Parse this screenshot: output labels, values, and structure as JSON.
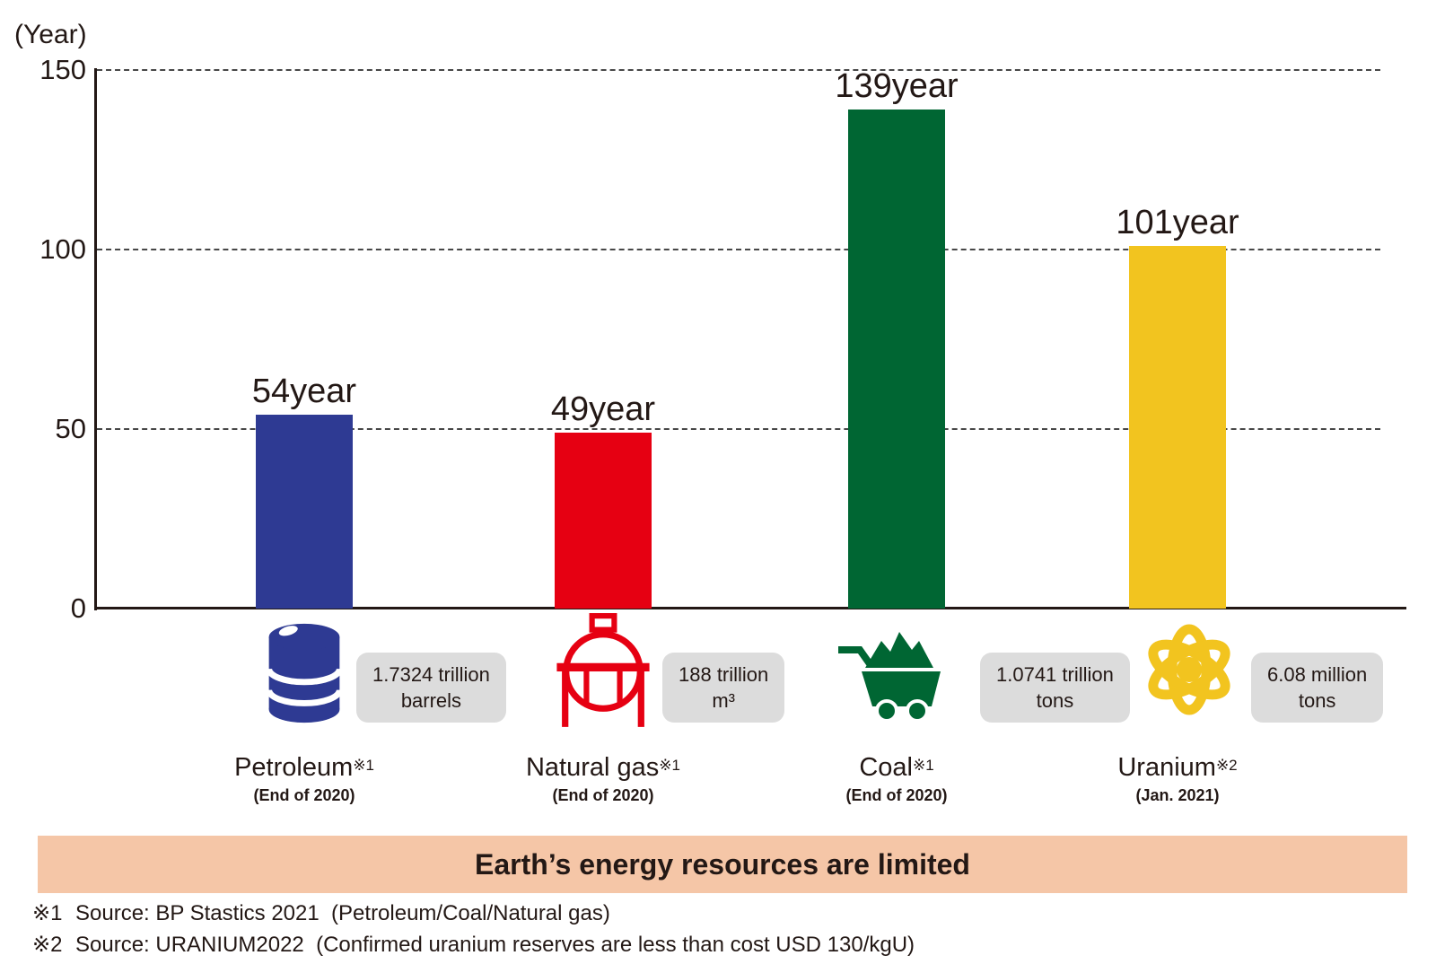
{
  "axis": {
    "unit_label": "(Year)",
    "ticks": [
      150,
      100,
      50,
      0
    ],
    "max": 150
  },
  "chart_data": {
    "type": "bar",
    "title": "",
    "categories": [
      "Petroleum",
      "Natural gas",
      "Coal",
      "Uranium"
    ],
    "values": [
      54,
      49,
      139,
      101
    ],
    "value_labels": [
      "54year",
      "49year",
      "139year",
      "101year"
    ],
    "xlabel": "",
    "ylabel": "(Year)",
    "ylim": [
      0,
      150
    ],
    "yticks": [
      0,
      50,
      100,
      150
    ],
    "grid": "horizontal-dashed",
    "legend": "none",
    "bar_colors": [
      "#2e3a93",
      "#e60012",
      "#006633",
      "#f2c41f"
    ]
  },
  "resources": [
    {
      "name": "Petroleum",
      "note_ref": "※1",
      "date": "(End of 2020)",
      "reserve_line1": "1.7324 trillion",
      "reserve_line2": "barrels",
      "icon": "oil-barrel-icon",
      "color": "#2e3a93"
    },
    {
      "name": "Natural gas",
      "note_ref": "※1",
      "date": "(End of 2020)",
      "reserve_line1": "188 trillion",
      "reserve_line2": "m³",
      "icon": "gas-tank-icon",
      "color": "#e60012"
    },
    {
      "name": "Coal",
      "note_ref": "※1",
      "date": "(End of 2020)",
      "reserve_line1": "1.0741 trillion",
      "reserve_line2": "tons",
      "icon": "coal-cart-icon",
      "color": "#006633"
    },
    {
      "name": "Uranium",
      "note_ref": "※2",
      "date": "(Jan. 2021)",
      "reserve_line1": "6.08 million",
      "reserve_line2": "tons",
      "icon": "atom-icon",
      "color": "#f2c41f"
    }
  ],
  "banner": {
    "text": "Earth’s energy resources are limited",
    "bg": "#f5c6a7"
  },
  "footnotes": [
    {
      "marker": "※1",
      "text": "Source: BP Stastics 2021  (Petroleum/Coal/Natural gas)"
    },
    {
      "marker": "※2",
      "text": "Source: URANIUM2022  (Confirmed uranium reserves are less than cost USD 130/kgU)"
    }
  ],
  "colors": {
    "text": "#231815",
    "gridline": "#474747",
    "badge_bg": "#dcdcdc",
    "banner_bg": "#f5c6a7"
  }
}
